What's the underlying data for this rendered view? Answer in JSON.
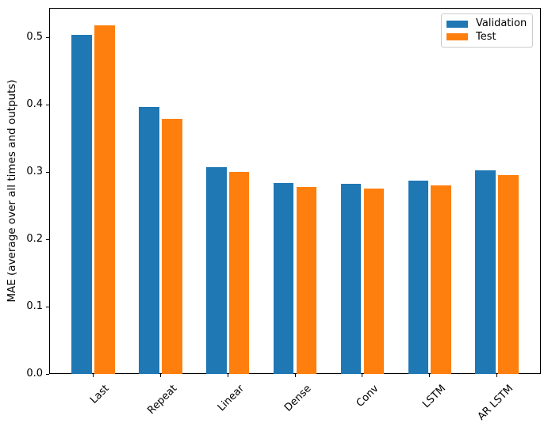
{
  "chart_data": {
    "type": "bar",
    "title": "",
    "xlabel": "",
    "ylabel": "MAE (average over all times and outputs)",
    "categories": [
      "Last",
      "Repeat",
      "Linear",
      "Dense",
      "Conv",
      "LSTM",
      "AR LSTM"
    ],
    "series": [
      {
        "name": "Validation",
        "color": "#1f77b4",
        "values": [
          0.503,
          0.397,
          0.307,
          0.284,
          0.282,
          0.287,
          0.302
        ]
      },
      {
        "name": "Test",
        "color": "#ff7f0e",
        "values": [
          0.518,
          0.379,
          0.3,
          0.278,
          0.275,
          0.28,
          0.295
        ]
      }
    ],
    "yticks": [
      0.0,
      0.1,
      0.2,
      0.3,
      0.4,
      0.5
    ],
    "ytick_labels": [
      "0.0",
      "0.1",
      "0.2",
      "0.3",
      "0.4",
      "0.5"
    ],
    "ylim": [
      0,
      0.5435
    ],
    "xlim": [
      -0.654,
      6.653
    ],
    "bar_width": 0.3,
    "bar_offset": 0.17,
    "xtick_rotation": 45,
    "grid": false,
    "legend": {
      "position": "upper right"
    },
    "axis_color": "#000000",
    "background_color": "#ffffff"
  }
}
